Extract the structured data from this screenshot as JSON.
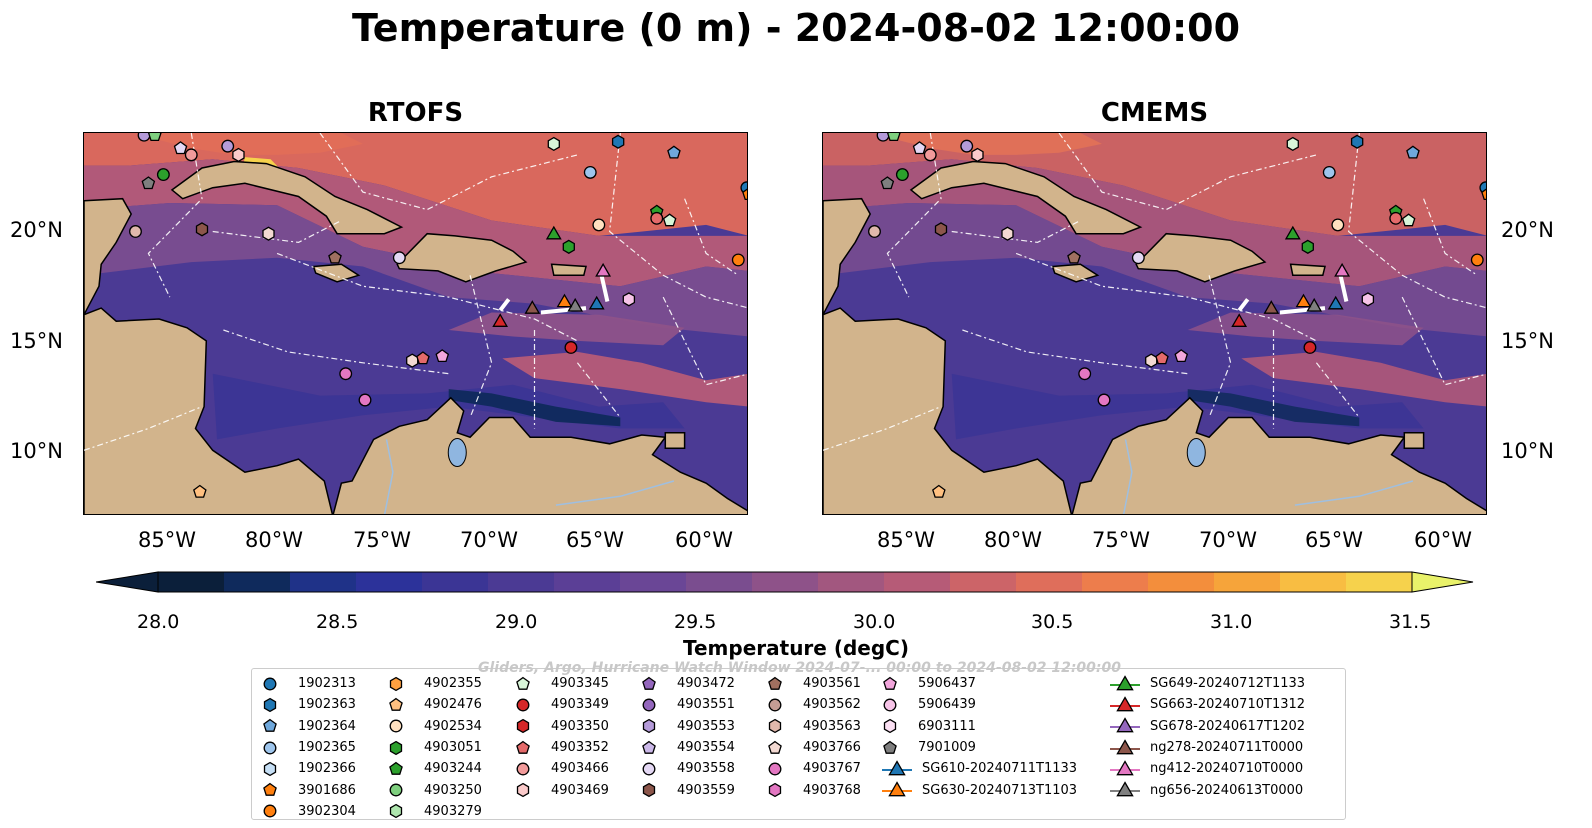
{
  "title": "Temperature (0 m) - 2024-08-02 12:00:00",
  "panels": [
    {
      "title": "RTOFS"
    },
    {
      "title": "CMEMS"
    }
  ],
  "axes": {
    "x_ticks": [
      "85°W",
      "80°W",
      "75°W",
      "70°W",
      "65°W",
      "60°W"
    ],
    "y_ticks": [
      "20°N",
      "15°N",
      "10°N"
    ]
  },
  "colorbar": {
    "label": "Temperature (degC)",
    "ticks": [
      "28.0",
      "28.5",
      "29.0",
      "29.5",
      "30.0",
      "30.5",
      "31.0",
      "31.5"
    ],
    "range": [
      28.0,
      31.5
    ],
    "colors": [
      "#0b1f3a",
      "#0f2a5c",
      "#1f3288",
      "#2c329a",
      "#3b3595",
      "#4b3a94",
      "#5b3f96",
      "#6a4696",
      "#7a4d8f",
      "#8e5289",
      "#a2577f",
      "#b65b77",
      "#cc6468",
      "#df6e5b",
      "#ed7d4c",
      "#f38e3c",
      "#f6a43a",
      "#f8bd42",
      "#f6d24c",
      "#e9f26a"
    ],
    "extend": "both"
  },
  "watermark": "Gliders, Argo, Hurricane Watch Window 2024-07-... 00:00 to 2024-08-02 12:00:00",
  "legend": {
    "columns": [
      [
        {
          "label": "1902313",
          "marker": "circle",
          "color": "#1f77b4"
        },
        {
          "label": "1902363",
          "marker": "hexagon",
          "color": "#1f77b4"
        },
        {
          "label": "1902364",
          "marker": "pentagon",
          "color": "#6fa8dc"
        },
        {
          "label": "1902365",
          "marker": "circle",
          "color": "#9ec5ec"
        },
        {
          "label": "1902366",
          "marker": "hexagon",
          "color": "#c6dff5"
        },
        {
          "label": "3901686",
          "marker": "pentagon",
          "color": "#ff7f0e"
        },
        {
          "label": "3902304",
          "marker": "circle",
          "color": "#ff7f0e"
        }
      ],
      [
        {
          "label": "4902355",
          "marker": "hexagon",
          "color": "#ffa040"
        },
        {
          "label": "4902476",
          "marker": "pentagon",
          "color": "#ffc080"
        },
        {
          "label": "4902534",
          "marker": "circle",
          "color": "#ffe0c0"
        },
        {
          "label": "4903051",
          "marker": "hexagon",
          "color": "#2ca02c"
        },
        {
          "label": "4903244",
          "marker": "pentagon",
          "color": "#2ca02c"
        },
        {
          "label": "4903250",
          "marker": "circle",
          "color": "#7fd07f"
        },
        {
          "label": "4903279",
          "marker": "hexagon",
          "color": "#aee6ae"
        }
      ],
      [
        {
          "label": "4903345",
          "marker": "pentagon",
          "color": "#d8f5d8"
        },
        {
          "label": "4903349",
          "marker": "circle",
          "color": "#d62728"
        },
        {
          "label": "4903350",
          "marker": "hexagon",
          "color": "#d62728"
        },
        {
          "label": "4903352",
          "marker": "pentagon",
          "color": "#e46a6a"
        },
        {
          "label": "4903466",
          "marker": "circle",
          "color": "#f29b9b"
        },
        {
          "label": "4903469",
          "marker": "hexagon",
          "color": "#fbcaca"
        }
      ],
      [
        {
          "label": "4903472",
          "marker": "pentagon",
          "color": "#9467bd"
        },
        {
          "label": "4903551",
          "marker": "circle",
          "color": "#9467bd"
        },
        {
          "label": "4903553",
          "marker": "hexagon",
          "color": "#b59bd9"
        },
        {
          "label": "4903554",
          "marker": "pentagon",
          "color": "#cbb8e8"
        },
        {
          "label": "4903558",
          "marker": "circle",
          "color": "#e4d8f4"
        },
        {
          "label": "4903559",
          "marker": "hexagon",
          "color": "#8c564b"
        }
      ],
      [
        {
          "label": "4903561",
          "marker": "pentagon",
          "color": "#a07060"
        },
        {
          "label": "4903562",
          "marker": "circle",
          "color": "#c49c94"
        },
        {
          "label": "4903563",
          "marker": "hexagon",
          "color": "#e0b8ac"
        },
        {
          "label": "4903766",
          "marker": "pentagon",
          "color": "#f3d9d2"
        },
        {
          "label": "4903767",
          "marker": "circle",
          "color": "#e377c2"
        },
        {
          "label": "4903768",
          "marker": "hexagon",
          "color": "#e377c2"
        }
      ],
      [
        {
          "label": "5906437",
          "marker": "pentagon",
          "color": "#f2a6dc"
        },
        {
          "label": "5906439",
          "marker": "circle",
          "color": "#f7c4e8"
        },
        {
          "label": "6903111",
          "marker": "hexagon",
          "color": "#fbe0f3"
        },
        {
          "label": "7901009",
          "marker": "pentagon",
          "color": "#7f7f7f"
        },
        {
          "label": "SG610-20240711T1133",
          "marker": "triangle-line",
          "color": "#1f77b4"
        },
        {
          "label": "SG630-20240713T1103",
          "marker": "triangle-line",
          "color": "#ff7f0e"
        }
      ],
      [
        {
          "label": "SG649-20240712T1133",
          "marker": "triangle-line",
          "color": "#2ca02c"
        },
        {
          "label": "SG663-20240710T1312",
          "marker": "triangle-line",
          "color": "#d62728"
        },
        {
          "label": "SG678-20240617T1202",
          "marker": "triangle-line",
          "color": "#9467bd"
        },
        {
          "label": "ng278-20240711T0000",
          "marker": "triangle-line",
          "color": "#8c564b"
        },
        {
          "label": "ng412-20240710T0000",
          "marker": "triangle-line",
          "color": "#e377c2"
        },
        {
          "label": "ng656-20240613T0000",
          "marker": "triangle-line",
          "color": "#7f7f7f"
        }
      ]
    ]
  },
  "map_markers": [
    {
      "lon": -86.2,
      "lat": 24.4,
      "marker": "circle",
      "color": "#b59bd9"
    },
    {
      "lon": -85.7,
      "lat": 24.4,
      "marker": "pentagon",
      "color": "#7fd07f"
    },
    {
      "lon": -84.5,
      "lat": 23.8,
      "marker": "pentagon",
      "color": "#e4d8f4"
    },
    {
      "lon": -84.0,
      "lat": 23.5,
      "marker": "circle",
      "color": "#f29b9b"
    },
    {
      "lon": -82.3,
      "lat": 23.9,
      "marker": "circle",
      "color": "#b59bd9"
    },
    {
      "lon": -81.8,
      "lat": 23.5,
      "marker": "hexagon",
      "color": "#fbcaca"
    },
    {
      "lon": -86.0,
      "lat": 22.2,
      "marker": "pentagon",
      "color": "#7f7f7f"
    },
    {
      "lon": -85.3,
      "lat": 22.6,
      "marker": "circle",
      "color": "#2ca02c"
    },
    {
      "lon": -86.6,
      "lat": 20.0,
      "marker": "circle",
      "color": "#e0b8ac"
    },
    {
      "lon": -83.5,
      "lat": 20.1,
      "marker": "hexagon",
      "color": "#8c564b"
    },
    {
      "lon": -80.4,
      "lat": 19.9,
      "marker": "hexagon",
      "color": "#f3d9d2"
    },
    {
      "lon": -77.3,
      "lat": 18.8,
      "marker": "pentagon",
      "color": "#a07060"
    },
    {
      "lon": -74.3,
      "lat": 18.8,
      "marker": "circle",
      "color": "#e4d8f4"
    },
    {
      "lon": -67.1,
      "lat": 24.0,
      "marker": "hexagon",
      "color": "#d8f5d8"
    },
    {
      "lon": -65.4,
      "lat": 22.7,
      "marker": "circle",
      "color": "#9ec5ec"
    },
    {
      "lon": -64.1,
      "lat": 24.1,
      "marker": "hexagon",
      "color": "#1f77b4"
    },
    {
      "lon": -61.5,
      "lat": 23.6,
      "marker": "pentagon",
      "color": "#6fa8dc"
    },
    {
      "lon": -58.1,
      "lat": 22.0,
      "marker": "circle",
      "color": "#1f77b4"
    },
    {
      "lon": -58.0,
      "lat": 21.7,
      "marker": "pentagon",
      "color": "#ff7f0e"
    },
    {
      "lon": -65.0,
      "lat": 20.3,
      "marker": "circle",
      "color": "#ffe0c0"
    },
    {
      "lon": -62.3,
      "lat": 20.9,
      "marker": "pentagon",
      "color": "#2ca02c"
    },
    {
      "lon": -62.3,
      "lat": 20.6,
      "marker": "circle",
      "color": "#e46a6a"
    },
    {
      "lon": -61.7,
      "lat": 20.5,
      "marker": "pentagon",
      "color": "#d8f5d8"
    },
    {
      "lon": -66.4,
      "lat": 19.3,
      "marker": "hexagon",
      "color": "#2ca02c"
    },
    {
      "lon": -58.5,
      "lat": 18.7,
      "marker": "circle",
      "color": "#ff7f0e"
    },
    {
      "lon": -63.6,
      "lat": 16.9,
      "marker": "hexagon",
      "color": "#f7c4e8"
    },
    {
      "lon": -66.3,
      "lat": 14.7,
      "marker": "circle",
      "color": "#d62728"
    },
    {
      "lon": -73.7,
      "lat": 14.1,
      "marker": "hexagon",
      "color": "#f3d9d2"
    },
    {
      "lon": -73.2,
      "lat": 14.2,
      "marker": "pentagon",
      "color": "#e46a6a"
    },
    {
      "lon": -72.3,
      "lat": 14.3,
      "marker": "pentagon",
      "color": "#f2a6dc"
    },
    {
      "lon": -76.8,
      "lat": 13.5,
      "marker": "circle",
      "color": "#e377c2"
    },
    {
      "lon": -75.9,
      "lat": 12.3,
      "marker": "circle",
      "color": "#e377c2"
    },
    {
      "lon": -83.6,
      "lat": 8.1,
      "marker": "pentagon",
      "color": "#ffc080"
    },
    {
      "lon": -67.1,
      "lat": 19.9,
      "marker": "triangle",
      "color": "#2ca02c"
    },
    {
      "lon": -69.6,
      "lat": 15.9,
      "marker": "triangle",
      "color": "#d62728"
    },
    {
      "lon": -68.1,
      "lat": 16.5,
      "marker": "triangle",
      "color": "#8c564b"
    },
    {
      "lon": -66.1,
      "lat": 16.6,
      "marker": "triangle",
      "color": "#7f7f7f"
    },
    {
      "lon": -66.6,
      "lat": 16.8,
      "marker": "triangle",
      "color": "#ff7f0e"
    },
    {
      "lon": -65.1,
      "lat": 16.7,
      "marker": "triangle",
      "color": "#1f77b4"
    },
    {
      "lon": -64.8,
      "lat": 18.2,
      "marker": "triangle",
      "color": "#e377c2"
    }
  ]
}
